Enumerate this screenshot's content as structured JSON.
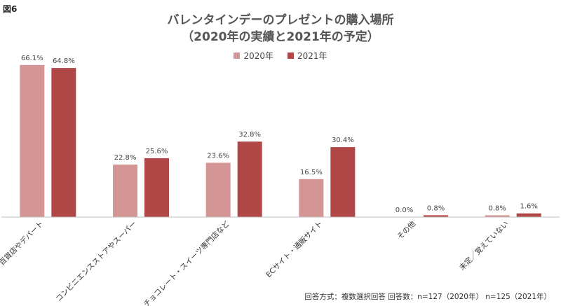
{
  "figure_label": "図6",
  "colors": {
    "series_2020": "#d49595",
    "series_2021": "#b04646",
    "axis": "#bfbfbf"
  },
  "note": "回答方式：複数選択回答 回答数：n=127（2020年） n=125（2021年）",
  "chart_data": {
    "type": "bar",
    "title": "バレンタインデーのプレゼントの購入場所",
    "subtitle": "（2020年の実績と2021年の予定）",
    "categories": [
      "百貨店やデパート",
      "コンビニエンスストアやスーパー",
      "チョコレート・スイーツ専門店など",
      "ECサイト・通販サイト",
      "その他",
      "未定／覚えていない"
    ],
    "series": [
      {
        "name": "2020年",
        "values": [
          66.1,
          22.8,
          23.6,
          16.5,
          0.0,
          0.8
        ],
        "labels": [
          "66.1%",
          "22.8%",
          "23.6%",
          "16.5%",
          "0.0%",
          "0.8%"
        ]
      },
      {
        "name": "2021年",
        "values": [
          64.8,
          25.6,
          32.8,
          30.4,
          0.8,
          1.6
        ],
        "labels": [
          "64.8%",
          "25.6%",
          "32.8%",
          "30.4%",
          "0.8%",
          "1.6%"
        ]
      }
    ],
    "xlabel": "",
    "ylabel": "",
    "ylim": [
      0,
      70
    ],
    "grid": false,
    "legend": "top-center"
  }
}
